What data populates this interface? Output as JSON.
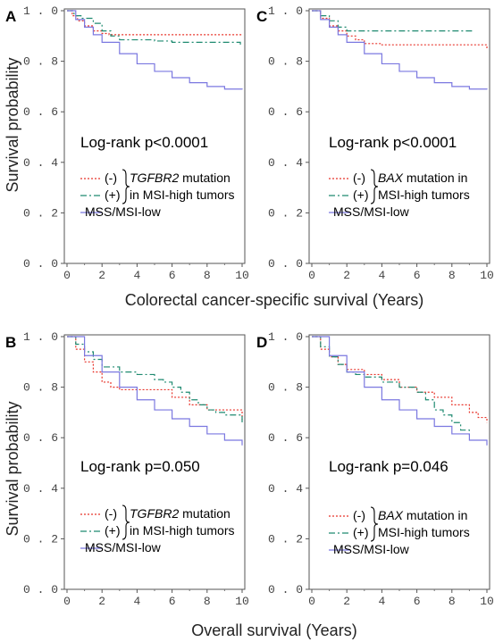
{
  "figure": {
    "ylabel": "Survival probability",
    "xlabel_top": "Colorectal cancer-specific survival (Years)",
    "xlabel_bottom": "Overall survival (Years)"
  },
  "chart_data": [
    {
      "panel": "A",
      "type": "line",
      "annotation": "Log-rank p<0.0001",
      "xlim": [
        0,
        10
      ],
      "ylim": [
        0,
        1
      ],
      "xticks": [
        "0",
        "2",
        "4",
        "6",
        "8",
        "10"
      ],
      "yticks": [
        "0.0",
        "0.2",
        "0.4",
        "0.6",
        "0.8",
        "1.0"
      ],
      "legend": [
        {
          "prefix": "(-)",
          "text_italic": "TGFBR2",
          "text": " mutation",
          "style": "dotted",
          "color": "#e8352b"
        },
        {
          "prefix": "(+)",
          "text_italic": "",
          "text": "in MSI-high tumors",
          "style": "dashdot",
          "color": "#1f8a70"
        },
        {
          "prefix": "",
          "text_italic": "",
          "text": "MSS/MSI-low",
          "style": "solid",
          "color": "#7b78e0"
        }
      ],
      "series": [
        {
          "color": "#e8352b",
          "style": "dotted",
          "x": [
            0,
            0.3,
            0.6,
            1.0,
            1.5,
            2.0,
            2.4,
            3,
            10
          ],
          "y": [
            1,
            0.98,
            0.96,
            0.94,
            0.92,
            0.91,
            0.905,
            0.905,
            0.905
          ]
        },
        {
          "color": "#1f8a70",
          "style": "dashdot",
          "x": [
            0,
            0.4,
            0.8,
            1.5,
            2.0,
            2.5,
            3,
            4,
            5,
            6,
            7,
            8,
            9,
            9.9
          ],
          "y": [
            1,
            0.98,
            0.97,
            0.95,
            0.92,
            0.9,
            0.885,
            0.885,
            0.88,
            0.875,
            0.875,
            0.875,
            0.875,
            0.86
          ]
        },
        {
          "color": "#7b78e0",
          "style": "solid",
          "x": [
            0,
            0.5,
            1,
            1.5,
            2,
            3,
            4,
            5,
            6,
            7,
            8,
            9,
            10
          ],
          "y": [
            1,
            0.965,
            0.935,
            0.905,
            0.875,
            0.83,
            0.79,
            0.76,
            0.735,
            0.715,
            0.7,
            0.69,
            0.688
          ]
        }
      ]
    },
    {
      "panel": "C",
      "type": "line",
      "annotation": "Log-rank p<0.0001",
      "xlim": [
        0,
        10
      ],
      "ylim": [
        0,
        1
      ],
      "xticks": [
        "0",
        "2",
        "4",
        "6",
        "8",
        "10"
      ],
      "yticks": [
        "0.0",
        "0.2",
        "0.4",
        "0.6",
        "0.8",
        "1.0"
      ],
      "legend": [
        {
          "prefix": "(-)",
          "text_italic": "BAX",
          "text": " mutation in",
          "style": "dotted",
          "color": "#e8352b"
        },
        {
          "prefix": "(+)",
          "text_italic": "",
          "text": "MSI-high tumors",
          "style": "dashdot",
          "color": "#1f8a70"
        },
        {
          "prefix": "",
          "text_italic": "",
          "text": "MSS/MSI-low",
          "style": "solid",
          "color": "#7b78e0"
        }
      ],
      "series": [
        {
          "color": "#e8352b",
          "style": "dotted",
          "x": [
            0,
            0.5,
            1,
            1.5,
            2,
            2.5,
            3,
            4,
            5,
            6,
            7,
            8,
            9,
            9.8,
            10
          ],
          "y": [
            1,
            0.97,
            0.94,
            0.92,
            0.9,
            0.885,
            0.87,
            0.865,
            0.865,
            0.865,
            0.865,
            0.865,
            0.865,
            0.865,
            0.845
          ]
        },
        {
          "color": "#1f8a70",
          "style": "dashdot",
          "x": [
            0,
            0.5,
            1,
            1.5,
            2,
            3,
            4,
            5,
            6,
            7,
            8,
            9.2
          ],
          "y": [
            1,
            0.98,
            0.96,
            0.935,
            0.92,
            0.92,
            0.92,
            0.92,
            0.92,
            0.92,
            0.92,
            0.92
          ]
        },
        {
          "color": "#7b78e0",
          "style": "solid",
          "x": [
            0,
            0.5,
            1,
            1.5,
            2,
            3,
            4,
            5,
            6,
            7,
            8,
            9,
            10
          ],
          "y": [
            1,
            0.965,
            0.935,
            0.905,
            0.875,
            0.83,
            0.79,
            0.76,
            0.735,
            0.715,
            0.7,
            0.69,
            0.688
          ]
        }
      ]
    },
    {
      "panel": "B",
      "type": "line",
      "annotation": "Log-rank p=0.050",
      "xlim": [
        0,
        10
      ],
      "ylim": [
        0,
        1
      ],
      "xticks": [
        "0",
        "2",
        "4",
        "6",
        "8",
        "10"
      ],
      "yticks": [
        "0.0",
        "0.2",
        "0.4",
        "0.6",
        "0.8",
        "1.0"
      ],
      "legend": [
        {
          "prefix": "(-)",
          "text_italic": "TGFBR2",
          "text": " mutation",
          "style": "dotted",
          "color": "#e8352b"
        },
        {
          "prefix": "(+)",
          "text_italic": "",
          "text": "in MSI-high tumors",
          "style": "dashdot",
          "color": "#1f8a70"
        },
        {
          "prefix": "",
          "text_italic": "",
          "text": "MSS/MSI-low",
          "style": "solid",
          "color": "#7b78e0"
        }
      ],
      "series": [
        {
          "color": "#e8352b",
          "style": "dotted",
          "x": [
            0,
            0.5,
            1,
            1.5,
            2,
            2.5,
            3,
            4,
            5,
            6,
            7,
            8,
            9,
            9.8,
            10
          ],
          "y": [
            1,
            0.95,
            0.9,
            0.86,
            0.82,
            0.8,
            0.79,
            0.79,
            0.79,
            0.76,
            0.73,
            0.71,
            0.71,
            0.71,
            0.67
          ]
        },
        {
          "color": "#1f8a70",
          "style": "dashdot",
          "x": [
            0,
            0.5,
            1,
            1.5,
            2,
            3,
            4,
            5,
            5.5,
            6,
            6.5,
            7,
            7.5,
            8,
            8.5,
            9,
            9.5,
            10
          ],
          "y": [
            1,
            0.97,
            0.94,
            0.91,
            0.88,
            0.86,
            0.85,
            0.83,
            0.82,
            0.8,
            0.78,
            0.75,
            0.73,
            0.71,
            0.7,
            0.69,
            0.69,
            0.65
          ]
        },
        {
          "color": "#7b78e0",
          "style": "solid",
          "x": [
            0,
            1,
            2,
            3,
            4,
            5,
            6,
            7,
            8,
            9,
            10
          ],
          "y": [
            1,
            0.925,
            0.86,
            0.8,
            0.75,
            0.71,
            0.675,
            0.645,
            0.615,
            0.59,
            0.57
          ]
        }
      ]
    },
    {
      "panel": "D",
      "type": "line",
      "annotation": "Log-rank p=0.046",
      "xlim": [
        0,
        10
      ],
      "ylim": [
        0,
        1
      ],
      "xticks": [
        "0",
        "2",
        "4",
        "6",
        "8",
        "10"
      ],
      "yticks": [
        "0.0",
        "0.2",
        "0.4",
        "0.6",
        "0.8",
        "1.0"
      ],
      "legend": [
        {
          "prefix": "(-)",
          "text_italic": "BAX",
          "text": " mutation in",
          "style": "dotted",
          "color": "#e8352b"
        },
        {
          "prefix": "(+)",
          "text_italic": "",
          "text": "MSI-high tumors",
          "style": "dashdot",
          "color": "#1f8a70"
        },
        {
          "prefix": "",
          "text_italic": "",
          "text": "MSS/MSI-low",
          "style": "solid",
          "color": "#7b78e0"
        }
      ],
      "series": [
        {
          "color": "#e8352b",
          "style": "dotted",
          "x": [
            0,
            0.5,
            1,
            1.5,
            2,
            3,
            4,
            5,
            6,
            7,
            8,
            9,
            9.5,
            10
          ],
          "y": [
            1,
            0.95,
            0.92,
            0.89,
            0.87,
            0.85,
            0.83,
            0.8,
            0.78,
            0.76,
            0.73,
            0.7,
            0.68,
            0.66
          ]
        },
        {
          "color": "#1f8a70",
          "style": "dashdot",
          "x": [
            0,
            0.5,
            1,
            1.5,
            2,
            2.5,
            3,
            4,
            5,
            6,
            6.5,
            7,
            7.5,
            8,
            8.5,
            9
          ],
          "y": [
            1,
            0.96,
            0.92,
            0.89,
            0.86,
            0.85,
            0.84,
            0.82,
            0.8,
            0.78,
            0.75,
            0.71,
            0.69,
            0.66,
            0.63,
            0.61
          ]
        },
        {
          "color": "#7b78e0",
          "style": "solid",
          "x": [
            0,
            1,
            2,
            3,
            4,
            5,
            6,
            7,
            8,
            9,
            10
          ],
          "y": [
            1,
            0.925,
            0.86,
            0.8,
            0.75,
            0.71,
            0.675,
            0.645,
            0.615,
            0.59,
            0.57
          ]
        }
      ]
    }
  ]
}
